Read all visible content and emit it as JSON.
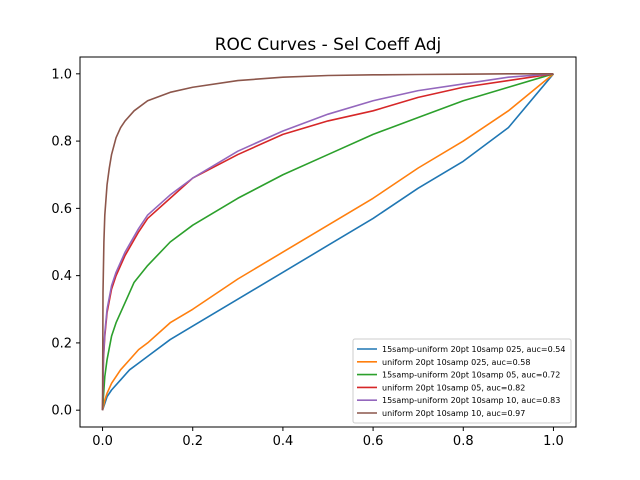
{
  "chart_data": {
    "type": "line",
    "title": "ROC Curves - Sel Coeff Adj",
    "xlabel": "",
    "ylabel": "",
    "xlim": [
      -0.05,
      1.05
    ],
    "ylim": [
      -0.05,
      1.05
    ],
    "x_ticks": [
      0.0,
      0.2,
      0.4,
      0.6,
      0.8,
      1.0
    ],
    "y_ticks": [
      0.0,
      0.2,
      0.4,
      0.6,
      0.8,
      1.0
    ],
    "x_tick_labels": [
      "0.0",
      "0.2",
      "0.4",
      "0.6",
      "0.8",
      "1.0"
    ],
    "y_tick_labels": [
      "0.0",
      "0.2",
      "0.4",
      "0.6",
      "0.8",
      "1.0"
    ],
    "grid": false,
    "legend_position": "lower-right",
    "series": [
      {
        "name": "15samp-uniform 20pt 10samp 025, auc=0.54",
        "color": "#1f77b4",
        "x": [
          0,
          0.005,
          0.01,
          0.02,
          0.04,
          0.06,
          0.08,
          0.1,
          0.15,
          0.2,
          0.3,
          0.4,
          0.5,
          0.6,
          0.7,
          0.8,
          0.9,
          1.0
        ],
        "y": [
          0,
          0.02,
          0.04,
          0.06,
          0.09,
          0.12,
          0.14,
          0.16,
          0.21,
          0.25,
          0.33,
          0.41,
          0.49,
          0.57,
          0.66,
          0.74,
          0.84,
          1.0
        ]
      },
      {
        "name": "uniform 20pt 10samp 025, auc=0.58",
        "color": "#ff7f0e",
        "x": [
          0,
          0.005,
          0.01,
          0.02,
          0.04,
          0.06,
          0.08,
          0.1,
          0.15,
          0.2,
          0.3,
          0.4,
          0.5,
          0.6,
          0.7,
          0.8,
          0.9,
          1.0
        ],
        "y": [
          0,
          0.03,
          0.05,
          0.08,
          0.12,
          0.15,
          0.18,
          0.2,
          0.26,
          0.3,
          0.39,
          0.47,
          0.55,
          0.63,
          0.72,
          0.8,
          0.89,
          1.0
        ]
      },
      {
        "name": "15samp-uniform 20pt 10samp 05, auc=0.72",
        "color": "#2ca02c",
        "x": [
          0,
          0.005,
          0.01,
          0.02,
          0.03,
          0.05,
          0.07,
          0.1,
          0.15,
          0.2,
          0.3,
          0.4,
          0.5,
          0.6,
          0.7,
          0.8,
          0.9,
          1.0
        ],
        "y": [
          0,
          0.1,
          0.15,
          0.22,
          0.26,
          0.32,
          0.38,
          0.43,
          0.5,
          0.55,
          0.63,
          0.7,
          0.76,
          0.82,
          0.87,
          0.92,
          0.96,
          1.0
        ]
      },
      {
        "name": "uniform 20pt 10samp 05, auc=0.82",
        "color": "#d62728",
        "x": [
          0,
          0.002,
          0.005,
          0.01,
          0.02,
          0.03,
          0.05,
          0.08,
          0.1,
          0.15,
          0.2,
          0.3,
          0.4,
          0.5,
          0.6,
          0.7,
          0.8,
          0.9,
          1.0
        ],
        "y": [
          0,
          0.15,
          0.22,
          0.29,
          0.36,
          0.4,
          0.46,
          0.53,
          0.57,
          0.63,
          0.69,
          0.76,
          0.82,
          0.86,
          0.89,
          0.93,
          0.96,
          0.98,
          1.0
        ]
      },
      {
        "name": "15samp-uniform 20pt 10samp 10, auc=0.83",
        "color": "#9467bd",
        "x": [
          0,
          0.002,
          0.005,
          0.01,
          0.02,
          0.03,
          0.05,
          0.08,
          0.1,
          0.15,
          0.2,
          0.3,
          0.4,
          0.5,
          0.6,
          0.7,
          0.8,
          0.9,
          1.0
        ],
        "y": [
          0,
          0.16,
          0.23,
          0.3,
          0.37,
          0.41,
          0.47,
          0.54,
          0.58,
          0.64,
          0.69,
          0.77,
          0.83,
          0.88,
          0.92,
          0.95,
          0.97,
          0.99,
          1.0
        ]
      },
      {
        "name": "uniform 20pt 10samp 10, auc=0.97",
        "color": "#8c564b",
        "x": [
          0,
          0.001,
          0.003,
          0.005,
          0.01,
          0.015,
          0.02,
          0.03,
          0.04,
          0.05,
          0.07,
          0.1,
          0.15,
          0.2,
          0.3,
          0.4,
          0.5,
          0.6,
          0.7,
          0.8,
          0.9,
          1.0
        ],
        "y": [
          0,
          0.35,
          0.5,
          0.58,
          0.67,
          0.72,
          0.76,
          0.81,
          0.84,
          0.86,
          0.89,
          0.92,
          0.945,
          0.96,
          0.98,
          0.99,
          0.995,
          0.997,
          0.998,
          0.999,
          1.0,
          1.0
        ]
      }
    ]
  }
}
